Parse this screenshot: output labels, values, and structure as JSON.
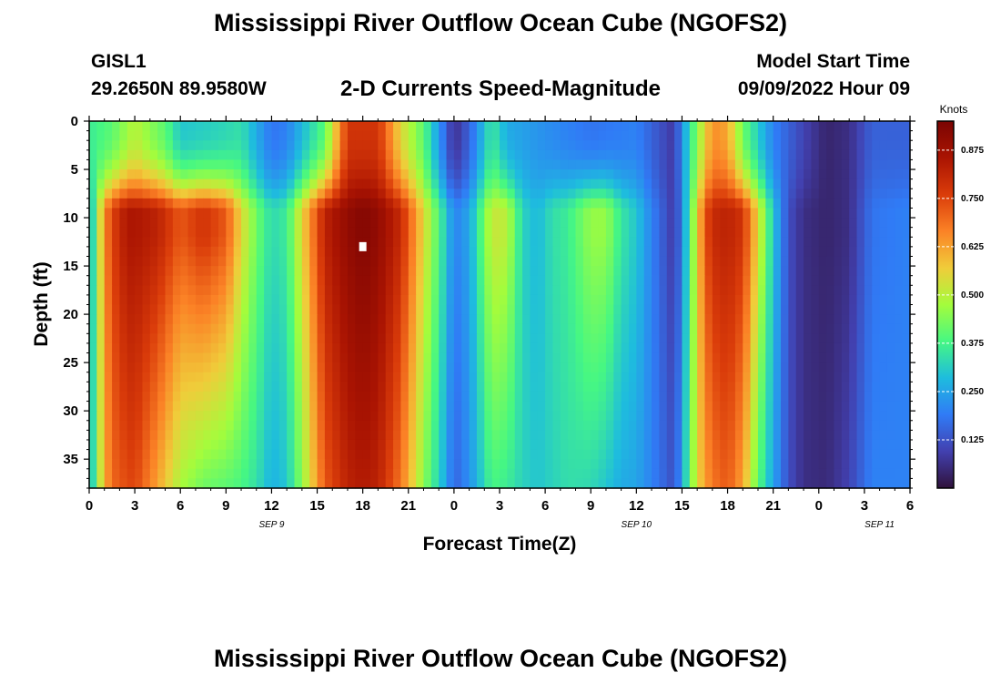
{
  "header": {
    "title": "Mississippi River Outflow Ocean Cube (NGOFS2)",
    "station_id": "GISL1",
    "station_coords": "29.2650N  89.9580W",
    "plot_subtitle": "2-D Currents Speed-Magnitude",
    "model_start_label": "Model Start Time",
    "model_start_value": "09/09/2022 Hour 09"
  },
  "footer": {
    "title": "Mississippi River Outflow Ocean Cube (NGOFS2)"
  },
  "chart_data": {
    "type": "heatmap",
    "xlabel": "Forecast Time(Z)",
    "ylabel": "Depth (ft)",
    "xlim": [
      0,
      54
    ],
    "ylim": [
      38,
      0
    ],
    "x_unit": "hours from 2022-09-09 00Z",
    "x_ticks": [
      0,
      3,
      6,
      9,
      12,
      15,
      18,
      21,
      24,
      27,
      30,
      33,
      36,
      39,
      42,
      45,
      48,
      51,
      54
    ],
    "x_tick_labels": [
      "0",
      "3",
      "6",
      "9",
      "12",
      "15",
      "18",
      "21",
      "0",
      "3",
      "6",
      "9",
      "12",
      "15",
      "18",
      "21",
      "0",
      "3",
      "6"
    ],
    "y_ticks": [
      0,
      5,
      10,
      15,
      20,
      25,
      30,
      35
    ],
    "y_tick_labels": [
      "0",
      "5",
      "10",
      "15",
      "20",
      "25",
      "30",
      "35"
    ],
    "date_labels": [
      {
        "text": "SEP 9",
        "at": 12
      },
      {
        "text": "SEP 10",
        "at": 36
      },
      {
        "text": "SEP 11",
        "at": 52
      }
    ],
    "colorbar": {
      "title": "Knots",
      "range": [
        0,
        0.95
      ],
      "ticks": [
        0.125,
        0.25,
        0.375,
        0.5,
        0.625,
        0.75,
        0.875
      ],
      "tick_labels": [
        "0.125",
        "0.250",
        "0.375",
        "0.500",
        "0.625",
        "0.750",
        "0.875"
      ]
    },
    "marker": {
      "x": 18,
      "y": 13,
      "color": "#ffffff"
    },
    "surface_profile_knots": {
      "x": [
        0,
        1.5,
        3,
        5,
        6,
        8.5,
        10,
        12,
        13,
        15.5,
        17,
        18,
        19,
        20.5,
        22,
        23.5,
        24,
        25,
        26.5,
        27.5,
        30,
        33,
        36,
        37,
        38.5,
        39,
        40,
        41,
        42,
        43,
        45,
        47,
        48.5,
        50,
        51.5,
        54
      ],
      "values": [
        0.36,
        0.4,
        0.5,
        0.4,
        0.3,
        0.32,
        0.34,
        0.18,
        0.2,
        0.4,
        0.78,
        0.78,
        0.78,
        0.55,
        0.4,
        0.15,
        0.06,
        0.15,
        0.36,
        0.26,
        0.22,
        0.18,
        0.2,
        0.15,
        0.08,
        0.22,
        0.45,
        0.65,
        0.62,
        0.42,
        0.2,
        0.1,
        0.04,
        0.06,
        0.15,
        0.15
      ]
    },
    "mid_profile_knots": {
      "x": [
        0,
        0.5,
        1,
        1.5,
        2,
        2.5,
        3,
        4.5,
        6,
        7.5,
        9,
        10,
        11,
        12,
        13,
        14,
        15.5,
        17,
        18,
        19,
        20.5,
        22,
        23.5,
        24,
        25,
        26.5,
        27.5,
        28.5,
        29.5,
        30.5,
        31.5,
        33,
        34,
        35,
        36,
        37,
        38.5,
        39,
        40,
        40.5,
        41,
        42,
        43,
        44,
        45,
        46,
        47,
        48.5,
        50,
        51.5,
        54
      ],
      "values": [
        0.22,
        0.45,
        0.65,
        0.75,
        0.8,
        0.85,
        0.85,
        0.82,
        0.72,
        0.78,
        0.72,
        0.55,
        0.42,
        0.33,
        0.36,
        0.55,
        0.82,
        0.9,
        0.93,
        0.9,
        0.8,
        0.55,
        0.3,
        0.2,
        0.25,
        0.52,
        0.5,
        0.32,
        0.28,
        0.34,
        0.36,
        0.46,
        0.46,
        0.35,
        0.3,
        0.2,
        0.08,
        0.2,
        0.55,
        0.72,
        0.8,
        0.82,
        0.78,
        0.55,
        0.3,
        0.12,
        0.06,
        0.04,
        0.06,
        0.18,
        0.2
      ]
    },
    "bottom_profile_knots": {
      "x": [
        0,
        0.5,
        1,
        1.5,
        2,
        2.5,
        3,
        4.5,
        6,
        7.5,
        9,
        10,
        11,
        12,
        13,
        14,
        15.5,
        17,
        18,
        19,
        20.5,
        22,
        23.5,
        24,
        25,
        26.5,
        27.5,
        28.5,
        29.5,
        30.5,
        31.5,
        33,
        34,
        35,
        36,
        37,
        38.5,
        39,
        40,
        40.5,
        41,
        42,
        43,
        44,
        45,
        46,
        47,
        48.5,
        50,
        51.5,
        54
      ],
      "values": [
        0.22,
        0.45,
        0.6,
        0.7,
        0.72,
        0.74,
        0.75,
        0.62,
        0.48,
        0.42,
        0.4,
        0.38,
        0.34,
        0.27,
        0.3,
        0.45,
        0.72,
        0.82,
        0.84,
        0.82,
        0.68,
        0.45,
        0.25,
        0.15,
        0.22,
        0.38,
        0.36,
        0.32,
        0.3,
        0.32,
        0.34,
        0.33,
        0.3,
        0.26,
        0.25,
        0.2,
        0.12,
        0.25,
        0.55,
        0.62,
        0.68,
        0.72,
        0.62,
        0.4,
        0.25,
        0.12,
        0.06,
        0.05,
        0.1,
        0.2,
        0.2
      ]
    }
  }
}
